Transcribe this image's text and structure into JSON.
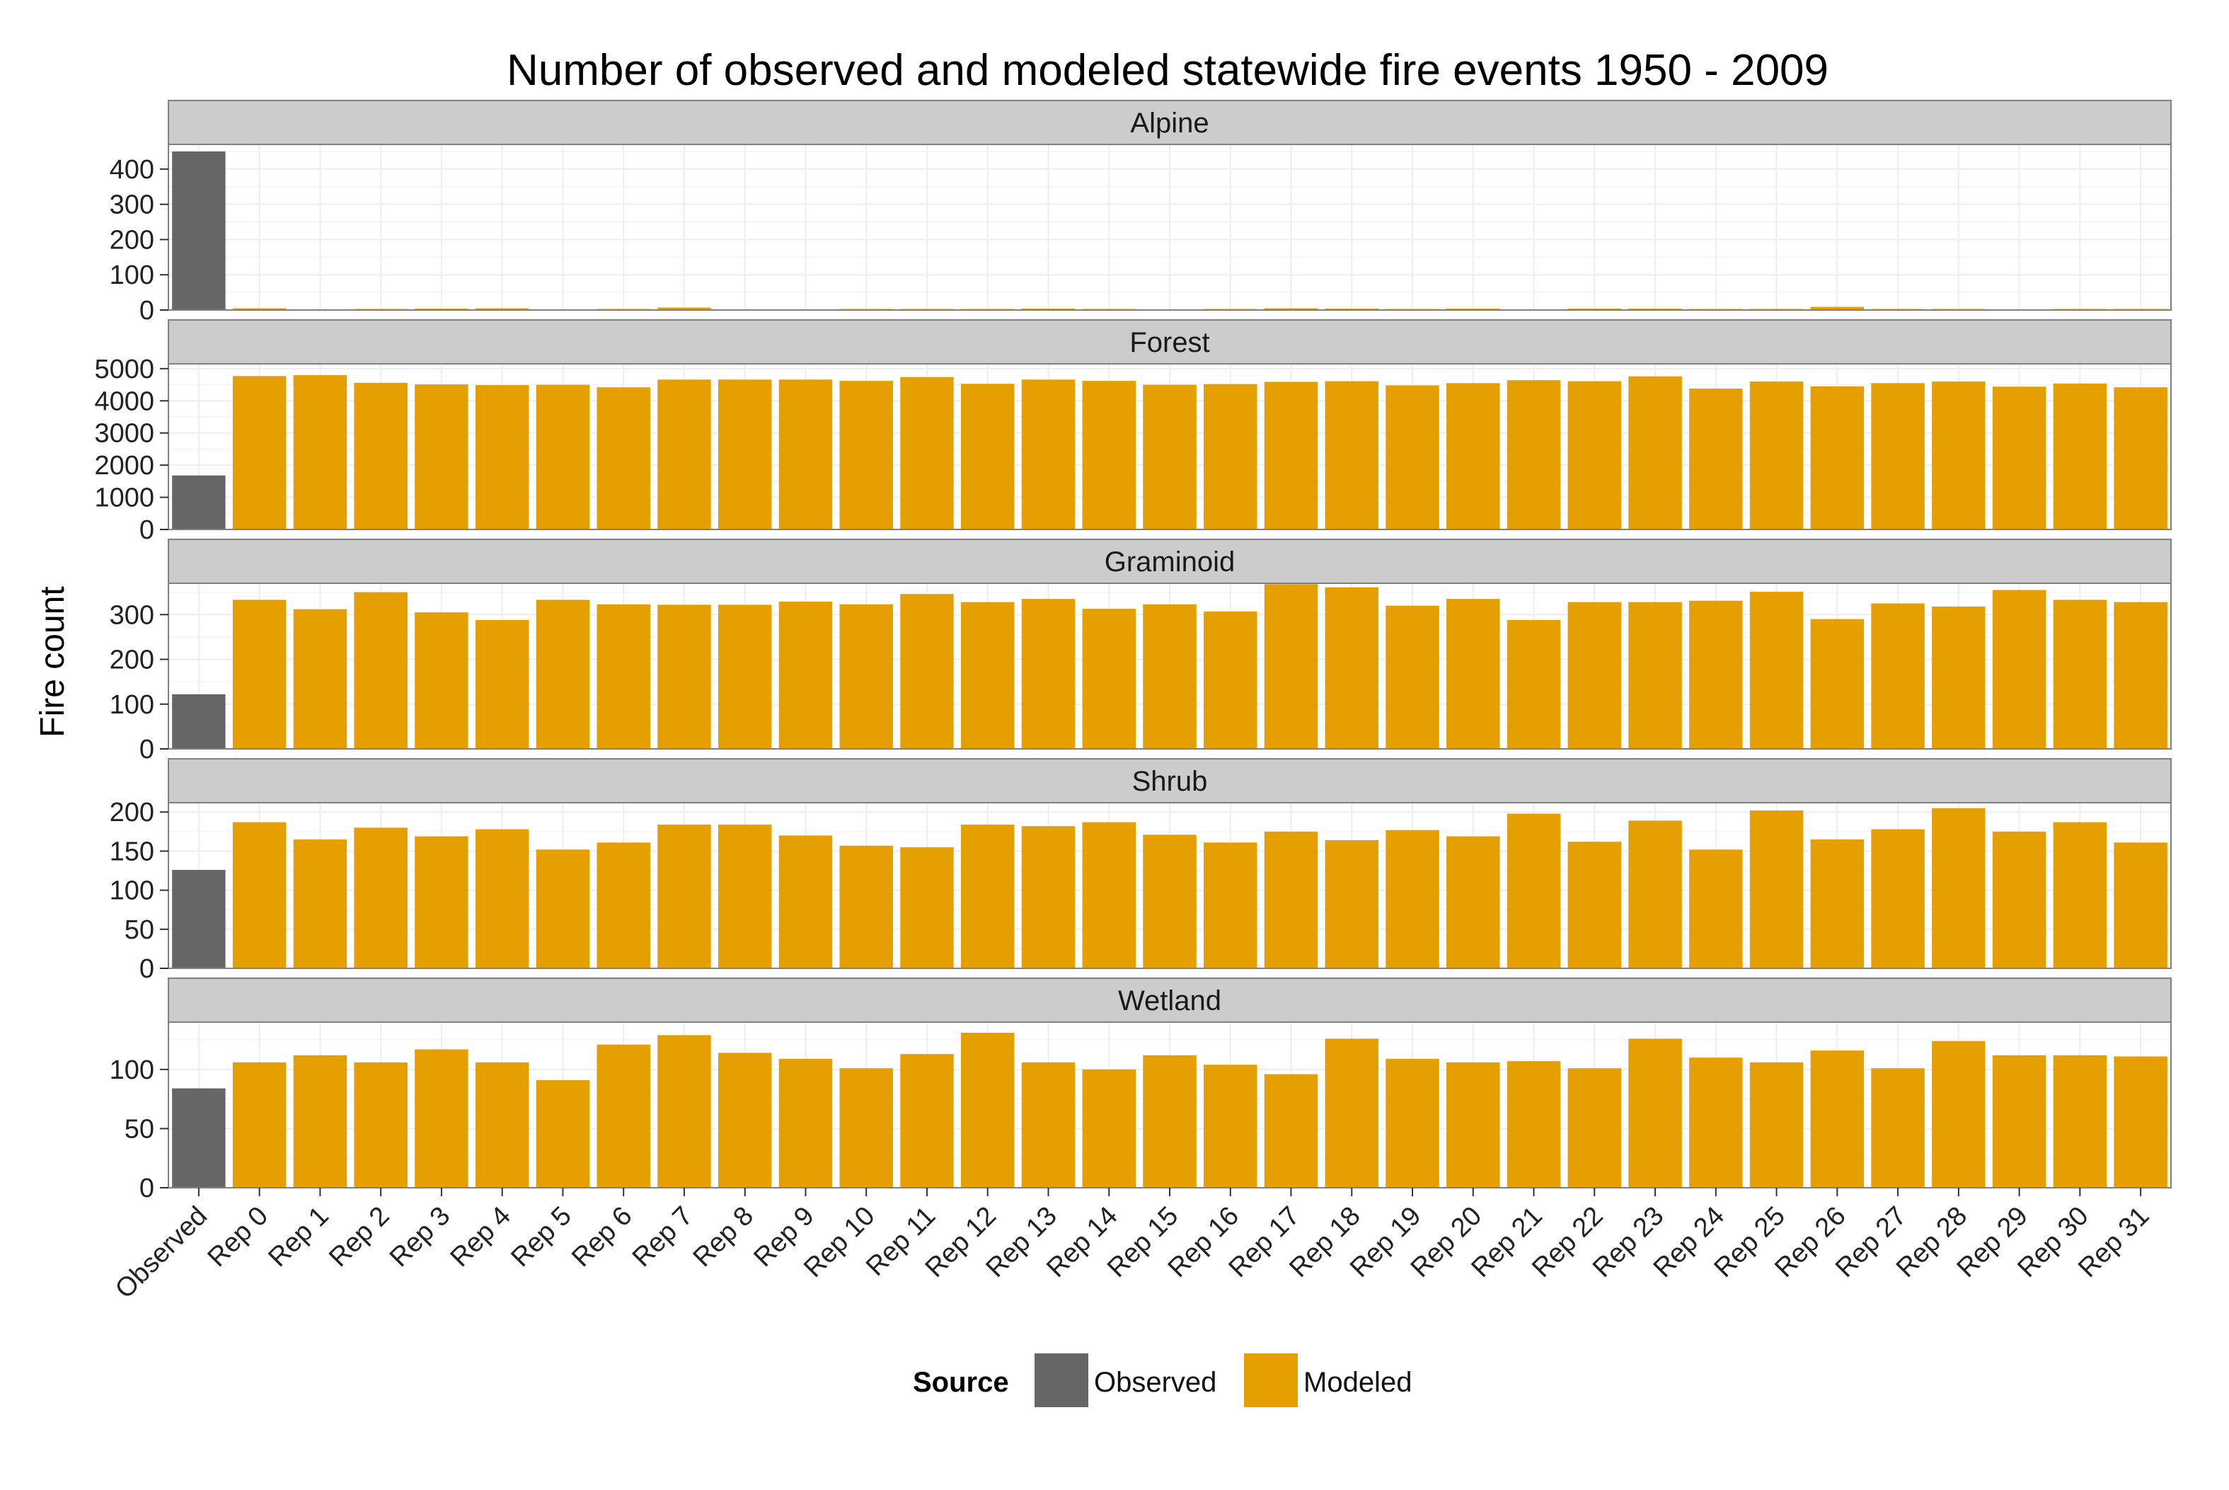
{
  "chart_data": {
    "type": "bar",
    "title": "Number of observed and modeled statewide fire events 1950 - 2009",
    "xlabel": "",
    "ylabel": "Fire count",
    "categories": [
      "Observed",
      "Rep 0",
      "Rep 1",
      "Rep 2",
      "Rep 3",
      "Rep 4",
      "Rep 5",
      "Rep 6",
      "Rep 7",
      "Rep 8",
      "Rep 9",
      "Rep 10",
      "Rep 11",
      "Rep 12",
      "Rep 13",
      "Rep 14",
      "Rep 15",
      "Rep 16",
      "Rep 17",
      "Rep 18",
      "Rep 19",
      "Rep 20",
      "Rep 21",
      "Rep 22",
      "Rep 23",
      "Rep 24",
      "Rep 25",
      "Rep 26",
      "Rep 27",
      "Rep 28",
      "Rep 29",
      "Rep 30",
      "Rep 31"
    ],
    "legend": {
      "title": "Source",
      "position": "bottom",
      "items": [
        {
          "label": "Observed",
          "color": "#666666"
        },
        {
          "label": "Modeled",
          "color": "#E69F00"
        }
      ]
    },
    "colors": {
      "observed": "#666666",
      "modeled": "#E69F00",
      "strip": "#cccccc",
      "grid": "#eeeeee"
    },
    "grid": true,
    "panels": [
      {
        "name": "Alpine",
        "ylim": [
          0,
          470
        ],
        "yticks": [
          0,
          100,
          200,
          300,
          400
        ],
        "ytick_labels": [
          "0",
          "100",
          "200",
          "300",
          "400"
        ],
        "values": [
          450,
          5,
          2,
          3,
          4,
          5,
          2,
          3,
          7,
          2,
          1,
          3,
          3,
          3,
          4,
          3,
          0,
          3,
          5,
          4,
          3,
          4,
          2,
          4,
          4,
          3,
          3,
          9,
          3,
          3,
          2,
          3,
          3
        ]
      },
      {
        "name": "Forest",
        "ylim": [
          0,
          5150
        ],
        "yticks": [
          0,
          1000,
          2000,
          3000,
          4000,
          5000
        ],
        "ytick_labels": [
          "0",
          "1000",
          "2000",
          "3000",
          "4000",
          "5000"
        ],
        "values": [
          1680,
          4770,
          4800,
          4560,
          4510,
          4490,
          4500,
          4420,
          4660,
          4660,
          4660,
          4620,
          4740,
          4530,
          4660,
          4620,
          4500,
          4520,
          4590,
          4610,
          4480,
          4550,
          4640,
          4610,
          4760,
          4380,
          4600,
          4450,
          4550,
          4600,
          4440,
          4540,
          4420
        ]
      },
      {
        "name": "Graminoid",
        "ylim": [
          0,
          370
        ],
        "yticks": [
          0,
          100,
          200,
          300
        ],
        "ytick_labels": [
          "0",
          "100",
          "200",
          "300"
        ],
        "values": [
          122,
          333,
          312,
          350,
          305,
          288,
          333,
          323,
          322,
          322,
          329,
          323,
          346,
          328,
          335,
          313,
          323,
          307,
          368,
          361,
          320,
          335,
          288,
          328,
          328,
          331,
          351,
          290,
          325,
          318,
          355,
          333,
          328
        ]
      },
      {
        "name": "Shrub",
        "ylim": [
          0,
          212
        ],
        "yticks": [
          0,
          50,
          100,
          150,
          200
        ],
        "ytick_labels": [
          "0",
          "50",
          "100",
          "150",
          "200"
        ],
        "values": [
          126,
          187,
          165,
          180,
          169,
          178,
          152,
          161,
          184,
          184,
          170,
          157,
          155,
          184,
          182,
          187,
          171,
          161,
          175,
          164,
          177,
          169,
          198,
          162,
          189,
          152,
          202,
          165,
          178,
          205,
          175,
          187,
          161
        ]
      },
      {
        "name": "Wetland",
        "ylim": [
          0,
          140
        ],
        "yticks": [
          0,
          50,
          100
        ],
        "ytick_labels": [
          "0",
          "50",
          "100"
        ],
        "values": [
          84,
          106,
          112,
          106,
          117,
          106,
          91,
          121,
          129,
          114,
          109,
          101,
          113,
          131,
          106,
          100,
          112,
          104,
          96,
          126,
          109,
          106,
          107,
          101,
          126,
          110,
          106,
          116,
          101,
          124,
          112,
          112,
          111
        ]
      }
    ]
  }
}
